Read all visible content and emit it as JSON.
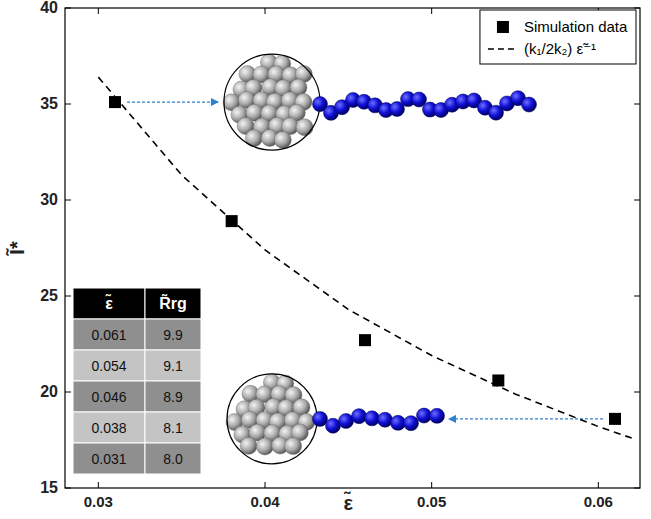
{
  "chart_data": {
    "type": "scatter",
    "x_label": "ε̃",
    "y_label": "Ĩ*",
    "xlim": [
      0.028,
      0.0625
    ],
    "ylim": [
      15,
      40
    ],
    "xticks": [
      0.03,
      0.04,
      0.05,
      0.06
    ],
    "yticks": [
      15,
      20,
      25,
      30,
      35,
      40
    ],
    "legend": "upper right",
    "series": [
      {
        "name": "Simulation data",
        "type": "scatter",
        "marker": "square",
        "color": "#000000",
        "x": [
          0.031,
          0.038,
          0.046,
          0.054,
          0.061
        ],
        "values": [
          35.1,
          28.9,
          22.7,
          20.6,
          18.6
        ]
      },
      {
        "name": "(k₁/2k₂) ε̃⁻¹",
        "type": "line",
        "line_style": "dashed",
        "color": "#000000",
        "x": [
          0.03,
          0.035,
          0.04,
          0.045,
          0.05,
          0.055,
          0.06,
          0.062
        ],
        "values": [
          36.4,
          31.3,
          27.4,
          24.3,
          21.9,
          19.9,
          18.2,
          17.6
        ]
      }
    ],
    "table": {
      "header": [
        "ε̃",
        "R̃rg"
      ],
      "rows": [
        [
          "0.061",
          "9.9"
        ],
        [
          "0.054",
          "9.1"
        ],
        [
          "0.046",
          "8.9"
        ],
        [
          "0.038",
          "8.1"
        ],
        [
          "0.031",
          "8.0"
        ]
      ]
    }
  }
}
